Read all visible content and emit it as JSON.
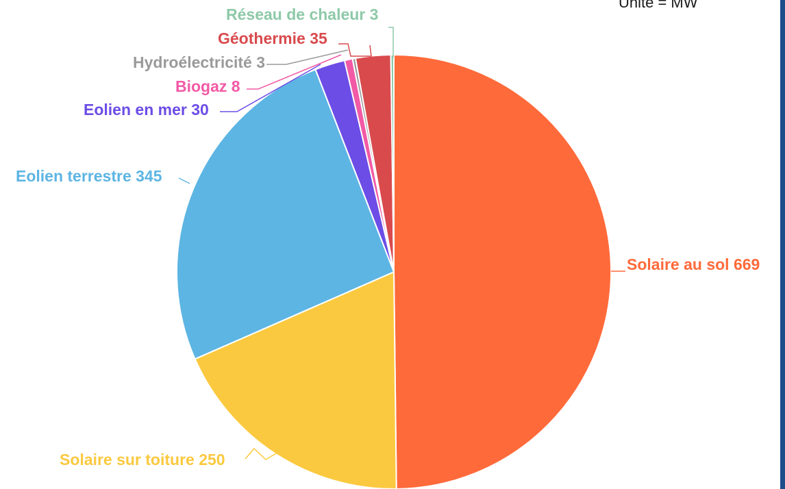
{
  "unit_label": "Unité = MW",
  "chart_data": {
    "type": "pie",
    "title": "",
    "start": "12 o'clock",
    "direction": "clockwise",
    "slices": [
      {
        "label": "Solaire au sol 669",
        "name": "Solaire au sol",
        "value": 669,
        "color": "#ff6a3a"
      },
      {
        "label": "Solaire sur toiture 250",
        "name": "Solaire sur toiture",
        "value": 250,
        "color": "#fbc93f"
      },
      {
        "label": "Eolien terrestre 345",
        "name": "Eolien terrestre",
        "value": 345,
        "color": "#5db5e3"
      },
      {
        "label": "Eolien en mer 30",
        "name": "Eolien en mer",
        "value": 30,
        "color": "#6c4de6"
      },
      {
        "label": "Biogaz 8",
        "name": "Biogaz",
        "value": 8,
        "color": "#f25aa5"
      },
      {
        "label": "Hydroélectricité 3",
        "name": "Hydroélectricité",
        "value": 3,
        "color": "#9a9a9a"
      },
      {
        "label": "Géothermie 35",
        "name": "Géothermie",
        "value": 35,
        "color": "#d94a4d"
      },
      {
        "label": "Réseau de chaleur 3",
        "name": "Réseau de chaleur",
        "value": 3,
        "color": "#8ec9a8"
      }
    ]
  }
}
